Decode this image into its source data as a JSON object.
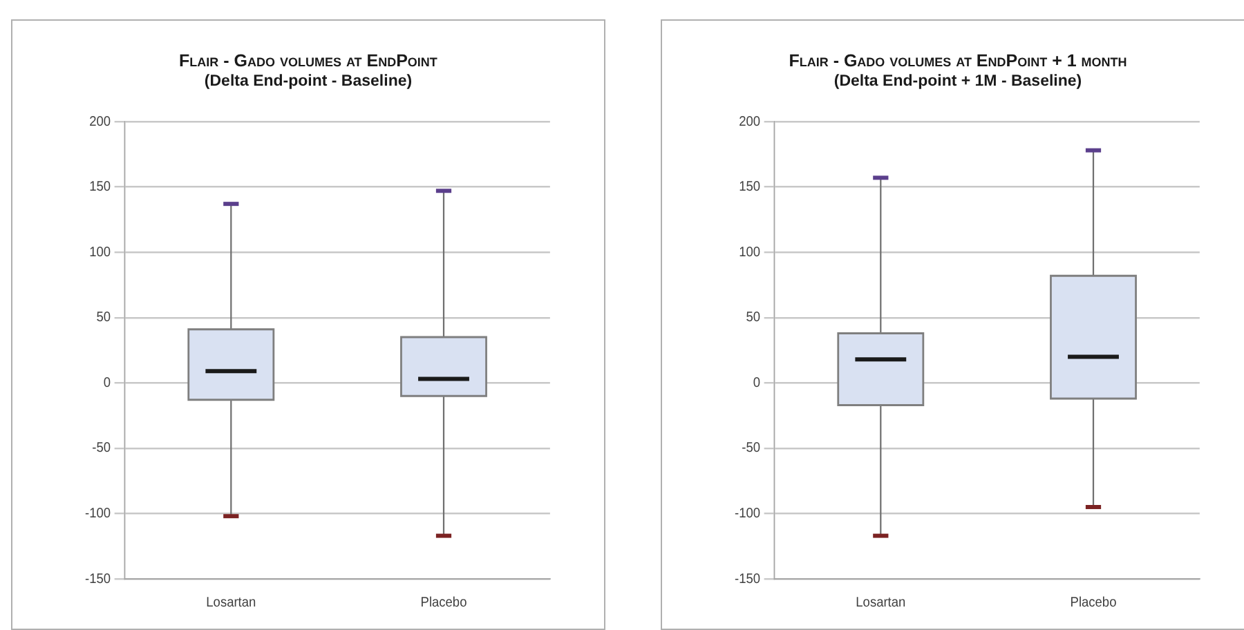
{
  "chart_data": [
    {
      "type": "box",
      "title": "Flair - Gado volumes at EndPoint",
      "subtitle": "(Delta End-point - Baseline)",
      "categories": [
        "Losartan",
        "Placebo"
      ],
      "ylim": [
        -150,
        200
      ],
      "yticks": [
        -150,
        -100,
        -50,
        0,
        50,
        100,
        150,
        200
      ],
      "grid": "y",
      "legend": false,
      "series": [
        {
          "color": "#d9e1f2",
          "boxes": [
            {
              "low": -102,
              "q1": -13,
              "median": 9,
              "q3": 41,
              "high": 137
            },
            {
              "low": -117,
              "q1": -10,
              "median": 3,
              "q3": 35,
              "high": 147
            }
          ]
        }
      ]
    },
    {
      "type": "box",
      "title": "Flair - Gado volumes at EndPoint + 1 month",
      "subtitle": "(Delta End-point + 1M - Baseline)",
      "categories": [
        "Losartan",
        "Placebo"
      ],
      "ylim": [
        -150,
        200
      ],
      "yticks": [
        -150,
        -100,
        -50,
        0,
        50,
        100,
        150,
        200
      ],
      "grid": "y",
      "legend": false,
      "series": [
        {
          "color": "#d9e1f2",
          "boxes": [
            {
              "low": -117,
              "q1": -17,
              "median": 18,
              "q3": 38,
              "high": 157
            },
            {
              "low": -95,
              "q1": -12,
              "median": 20,
              "q3": 82,
              "high": 178
            }
          ]
        }
      ]
    }
  ]
}
